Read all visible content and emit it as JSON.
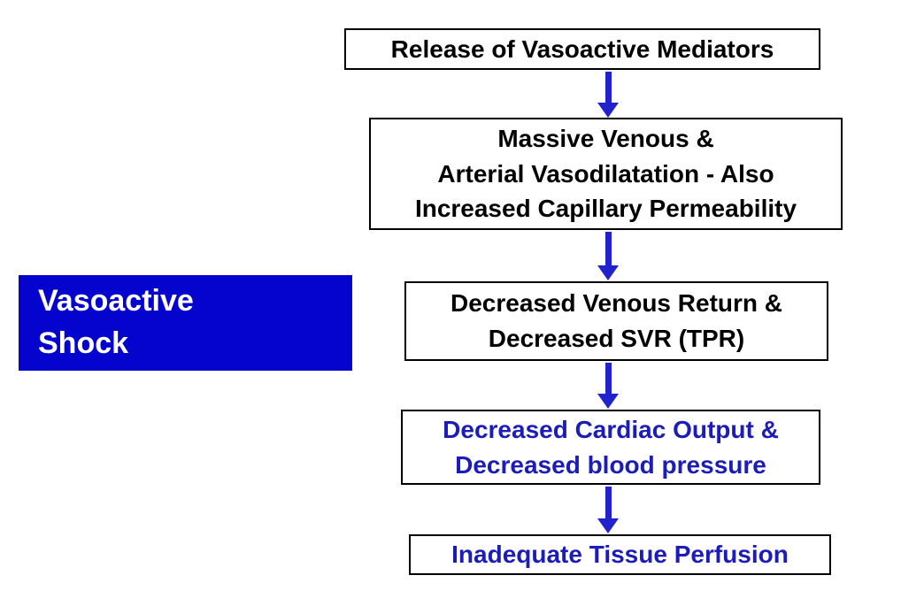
{
  "slide": {
    "background_color": "#FFFFFF",
    "label_box": {
      "line1": "Vasoactive",
      "line2": "Shock",
      "bg_color": "#0504CE",
      "text_color": "#FFFFFF"
    },
    "flowchart": {
      "arrow_color": "#2222CC",
      "black_text_color": "#000000",
      "blue_text_color": "#1C1CB8",
      "nodes": [
        {
          "id": "release-of-vasoactive-mediators",
          "lines": [
            "Release of Vasoactive Mediators"
          ]
        },
        {
          "id": "massive-vasodilatation",
          "lines": [
            "Massive Venous &",
            "Arterial Vasodilatation - Also",
            "Increased Capillary Permeability"
          ]
        },
        {
          "id": "decreased-venous-return",
          "lines": [
            "Decreased Venous Return &",
            "Decreased SVR (TPR)"
          ]
        },
        {
          "id": "decreased-cardiac-output",
          "lines": [
            "Decreased Cardiac Output &",
            "Decreased blood pressure"
          ]
        },
        {
          "id": "inadequate-tissue-perfusion",
          "lines": [
            "Inadequate Tissue Perfusion"
          ]
        }
      ]
    }
  }
}
